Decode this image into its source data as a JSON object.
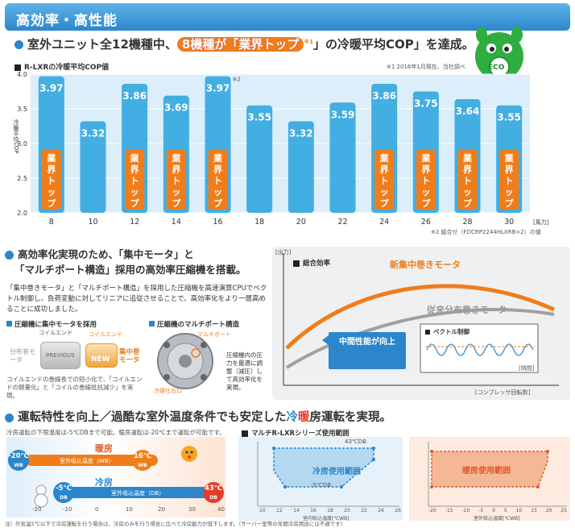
{
  "header": {
    "title": "高効率・高性能"
  },
  "headline": {
    "prefix": "室外ユニット全12機種中、",
    "highlight": "8機種が「業界トップ",
    "mark": "※1",
    "suffix": "」の冷暖平均COP」を達成。"
  },
  "chart_label": "R-LXRの冷暖平均COP値",
  "note1": "※1 2016年1月現在、当社調べ",
  "note2": "※2 組合せ（FDCRP2244HLXRB×2）の値",
  "note2_mark": "※2",
  "top_label": "業界トップ",
  "unit_label": "[馬力]",
  "ylabel": "冷暖平均COP",
  "chart_data": {
    "type": "bar",
    "categories": [
      "8",
      "10",
      "12",
      "14",
      "16",
      "18",
      "20",
      "22",
      "24",
      "26",
      "28",
      "30"
    ],
    "values": [
      3.97,
      3.32,
      3.86,
      3.69,
      3.97,
      3.55,
      3.32,
      3.59,
      3.86,
      3.75,
      3.64,
      3.55
    ],
    "value_labels": [
      "3.97",
      "3.32",
      "3.86",
      "3.69",
      "3.97",
      "3.55",
      "3.32",
      "3.59",
      "3.86",
      "3.75",
      "3.64",
      "3.55"
    ],
    "industry_top": [
      true,
      false,
      true,
      true,
      true,
      false,
      false,
      false,
      true,
      true,
      true,
      true
    ],
    "ylim": [
      2.0,
      4.0
    ],
    "yticks": [
      "2.0",
      "2.5",
      "3.0",
      "3.5",
      "4.0"
    ],
    "xlabel": "[馬力]",
    "ylabel": "冷暖平均COP",
    "bar_color": "#43aee2"
  },
  "eco": {
    "label": "ECO"
  },
  "section2": {
    "title_line1": "高効率化実現のため、「集中モータ」と",
    "title_line2": "「マルチポート構造」採用の高効率圧縮機を搭載。",
    "body": "「集中巻きモータ」と「マルチポート構造」を採用した圧縮機を高速演算CPUでベクトル制御し、負荷変動に対してリニアに追従させることで、高効率化をより一層高めることに成功しました。",
    "sub1": "圧縮機に集中モータを採用",
    "sub2": "圧縮機のマルチポート構造",
    "coil_end": "コイルエンド",
    "coil_end2": "コイルエンド",
    "dist_motor": "分布巻モータ",
    "previous": "PREVIOUS",
    "new": "NEW",
    "conc_motor": "集中巻モータ",
    "caption1": "コイルエンドの巻線長での短小化で、「コイルエンドの軽量化」と「コイルの巻線抵抗減少」を実現。",
    "multiport": "マルチポート",
    "discharge": "冷媒吐出口",
    "caption2": "圧縮機内の圧力を最適に調整（減圧）して高効率化を実現。"
  },
  "efficiency_chart": {
    "y_unit": "[出力]",
    "legend": "総合効率",
    "new_label": "新集中巻きモータ",
    "old_label": "従来分布巻きモータ",
    "mid_label": "中間性能が向上",
    "vector_label": "ベクトル制御",
    "time_label": "[時間]",
    "x_unit": "[コンプレッサ回転数]",
    "new_color": "#f07d1a",
    "old_color": "#a0a0a0"
  },
  "section3": {
    "title_a": "運転特性を向上／過酷な室外温度条件でも安定した",
    "title_cool": "冷",
    "title_heat": "暖",
    "title_b": "房運転を実現。",
    "desc": "冷房運転の下限温度は-5℃DBまで可能。暖房運転は-20℃まで運転が可能です。",
    "heating": "暖房",
    "cooling": "冷房",
    "heat_range": "室外吸込温度（WB）",
    "cool_range": "室外吸込温度（DB）",
    "heat_low": "-20℃",
    "heat_low_unit": "WB",
    "heat_high": "16℃",
    "heat_high_unit": "WB",
    "cool_low": "-5℃",
    "cool_low_unit": "DB",
    "cool_high": "43℃",
    "cool_high_unit": "DB",
    "axis_ticks": [
      "-20",
      "-10",
      "0",
      "10",
      "20",
      "30",
      "40"
    ],
    "footnote": "注）外気温5℃以下で冷房運転を行う場合は、冷房のみを行う場合に比べて冷房能力が低下します。（サーバー室等の年間冷房用途には不適です）",
    "range_title": "マルチR-LXRシリーズ使用範囲",
    "cool_area": "冷房使用範囲",
    "heat_area": "暖房使用範囲",
    "cool_pt1": "43℃DB",
    "cool_pt2": "-5℃DB",
    "cool_xticks": [
      "10",
      "12",
      "14",
      "16",
      "18",
      "20",
      "22",
      "24",
      "26"
    ],
    "cool_yticks": [
      "-10",
      "0",
      "10",
      "20",
      "30",
      "40",
      "50"
    ],
    "cool_xlabel": "室内吸込温度[℃WB]",
    "cool_ylabel": "室外吸込温度[℃DB]",
    "heat_xticks": [
      "-20",
      "-15",
      "-10",
      "-5",
      "0",
      "5",
      "10",
      "15",
      "20",
      "25"
    ],
    "heat_yticks": [
      "0",
      "5",
      "10",
      "15",
      "20",
      "25",
      "30",
      "35"
    ],
    "heat_xlabel": "室外吸込温度[℃WB]",
    "heat_ylabel": "室内吸込温度[℃DB]"
  }
}
